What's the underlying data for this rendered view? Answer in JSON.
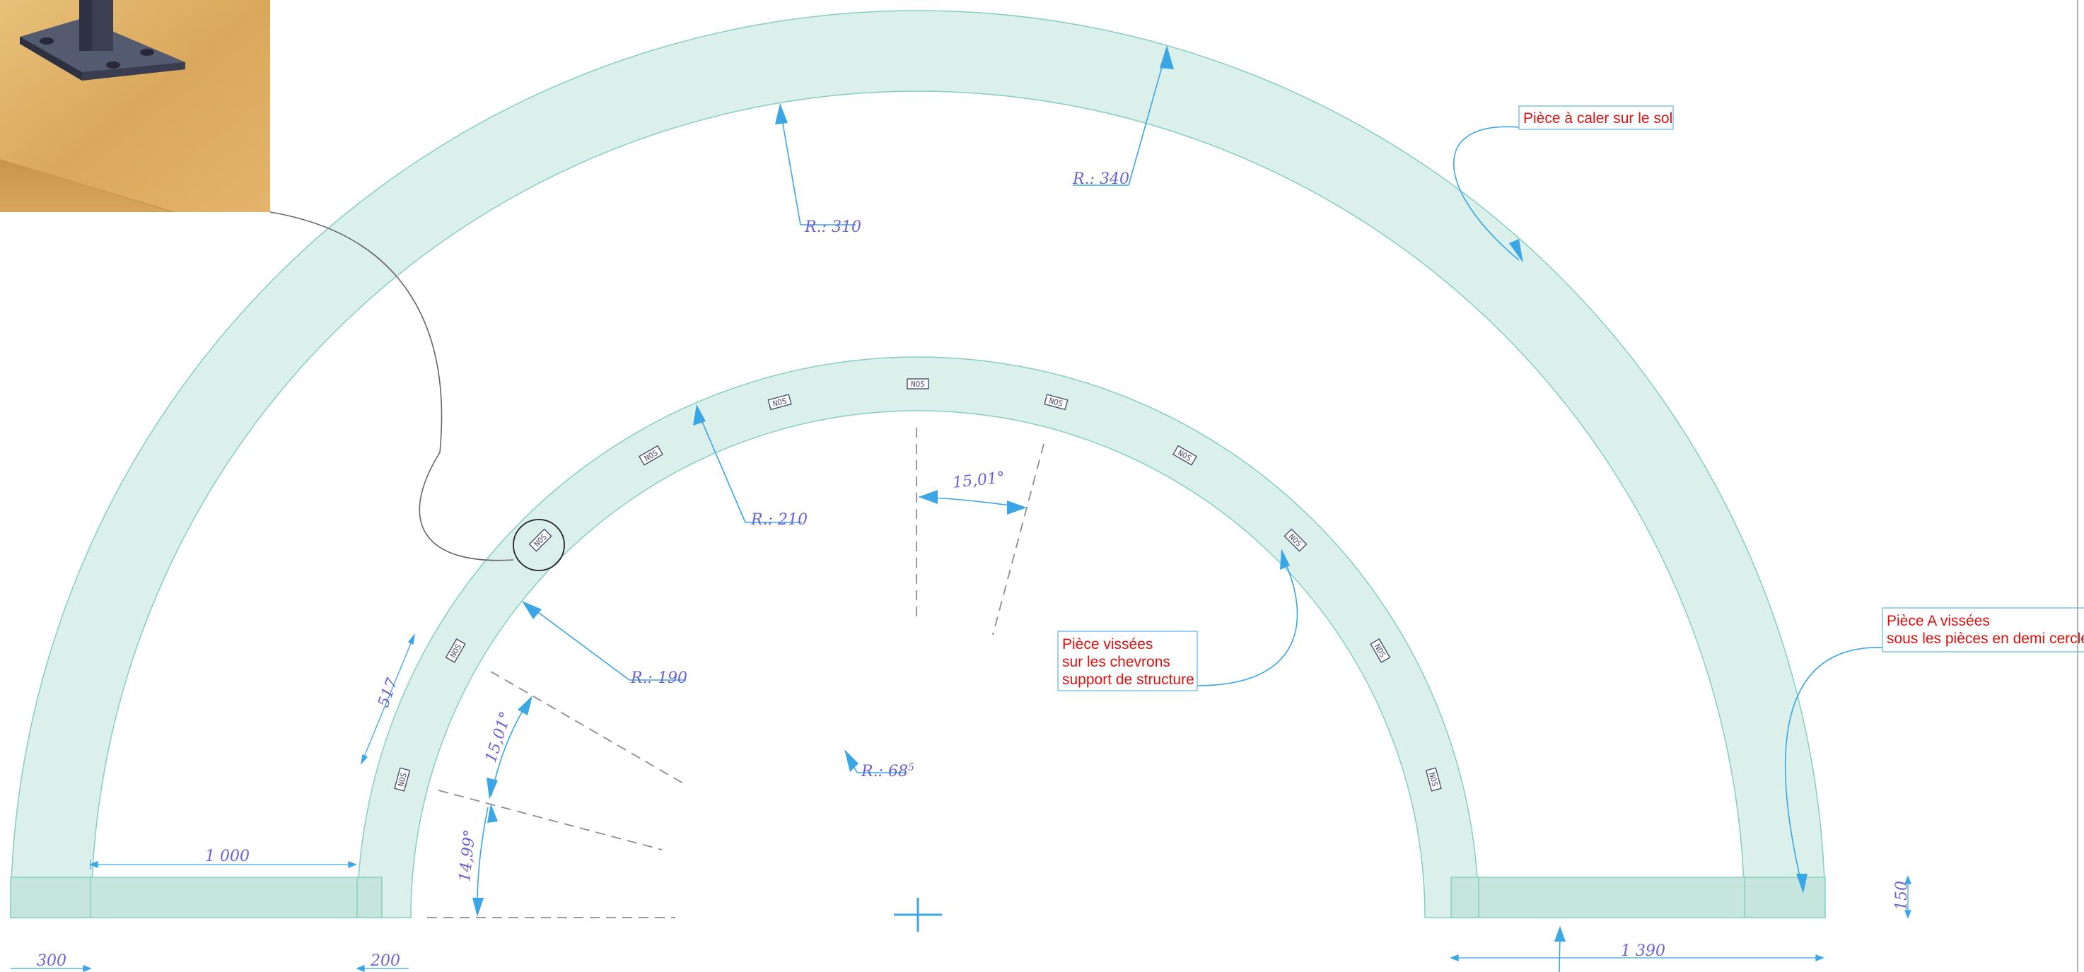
{
  "colors": {
    "ring_fill": "#dcf0eb",
    "ring_stroke": "#86cfc0",
    "dimension": "#6a62d6",
    "leader": "#3ba6e6",
    "note_text": "#e01010",
    "note_border": "#7ec0ee",
    "hidden_line": "#8e8e8e",
    "wood_light": "#e2b66e",
    "wood_dark": "#c28f44",
    "metal": "#3c3f52"
  },
  "radius_labels": [
    "R.: 340",
    "R.: 310",
    "R.: 210",
    "R.: 190",
    "R.: 68"
  ],
  "radius_68_suffix": "5",
  "angle_labels": [
    "15,01°",
    "15,01°",
    "14,99°"
  ],
  "length_labels": [
    "517",
    "1 000",
    "300",
    "200",
    "1 390",
    "150"
  ],
  "notes": {
    "ground": "Pièce à caler sur le sol",
    "screwed": [
      "Pièce vissées",
      "sur les chevrons",
      "support de structure"
    ],
    "under": [
      "Pièce  A vissées",
      "sous les pièces en demi cercle"
    ]
  },
  "bracket_tag": "NOS",
  "bracket_count": 11,
  "icons": [
    "bracket-3d-view-icon",
    "center-cross-icon",
    "detail-circle-icon"
  ]
}
